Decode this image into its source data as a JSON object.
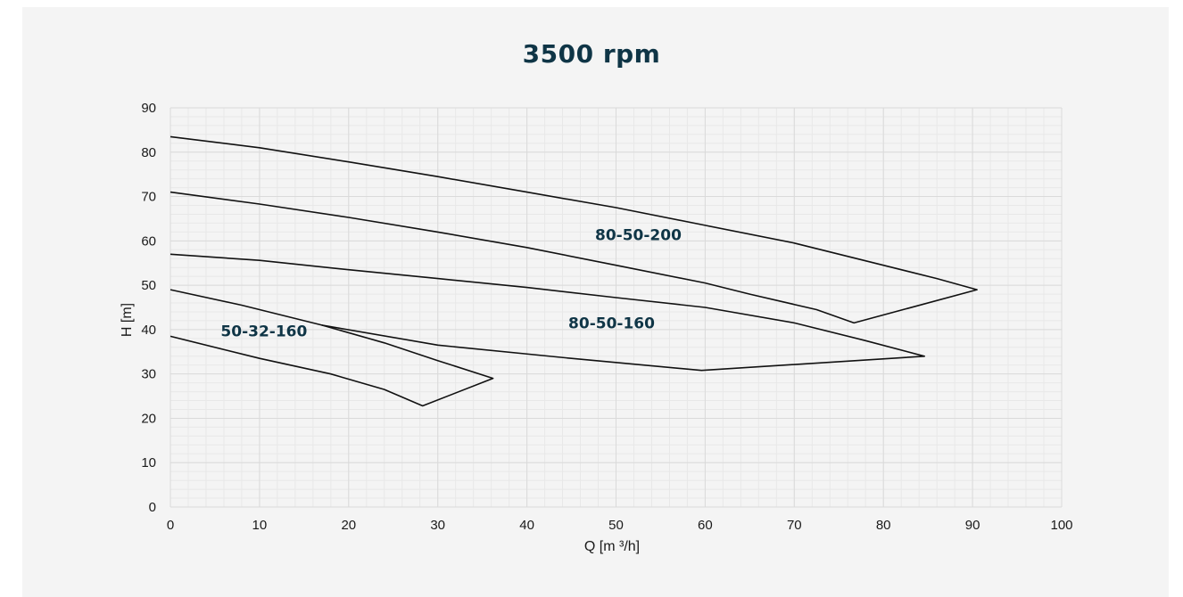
{
  "chart_data": {
    "type": "line",
    "title": "3500 rpm",
    "xlabel": "Q [m ³/h]",
    "ylabel": "H [m]",
    "xlim": [
      0,
      100
    ],
    "ylim": [
      0,
      90
    ],
    "x_ticks": [
      0,
      10,
      20,
      30,
      40,
      50,
      60,
      70,
      80,
      90,
      100
    ],
    "y_ticks": [
      0,
      10,
      20,
      30,
      40,
      50,
      60,
      70,
      80,
      90
    ],
    "grid": true,
    "series": [
      {
        "name": "50-32-160",
        "label_at": [
          10.5,
          38.5
        ],
        "points": [
          [
            0,
            49
          ],
          [
            8,
            45.5
          ],
          [
            17,
            41
          ],
          [
            24,
            37
          ],
          [
            30,
            33
          ],
          [
            36.2,
            29
          ],
          [
            28.3,
            22.8
          ],
          [
            24,
            26.5
          ],
          [
            18,
            30
          ],
          [
            10,
            33.5
          ],
          [
            0,
            38.5
          ]
        ]
      },
      {
        "name": "80-50-160",
        "label_at": [
          49.5,
          40.3
        ],
        "points": [
          [
            0,
            57
          ],
          [
            10,
            55.6
          ],
          [
            20,
            53.5
          ],
          [
            30,
            51.5
          ],
          [
            40,
            49.5
          ],
          [
            50,
            47.2
          ],
          [
            60,
            45
          ],
          [
            70,
            41.5
          ],
          [
            78,
            37.5
          ],
          [
            84.6,
            34
          ],
          [
            59.6,
            30.8
          ],
          [
            45,
            33.5
          ],
          [
            30,
            36.5
          ],
          [
            17,
            41
          ]
        ]
      },
      {
        "name": "80-50-200",
        "label_at": [
          52.5,
          60.2
        ],
        "points": [
          [
            0,
            83.5
          ],
          [
            10,
            81
          ],
          [
            20,
            77.8
          ],
          [
            30,
            74.5
          ],
          [
            40,
            71
          ],
          [
            50,
            67.5
          ],
          [
            60,
            63.5
          ],
          [
            70,
            59.5
          ],
          [
            80,
            54.5
          ],
          [
            86,
            51.5
          ],
          [
            90.5,
            49
          ],
          [
            76.7,
            41.5
          ],
          [
            72.5,
            44.5
          ],
          [
            65,
            48
          ],
          [
            60,
            50.5
          ],
          [
            50,
            54.5
          ],
          [
            40,
            58.5
          ],
          [
            30,
            62
          ],
          [
            20,
            65.3
          ],
          [
            10,
            68.3
          ],
          [
            0,
            71
          ]
        ]
      }
    ]
  }
}
